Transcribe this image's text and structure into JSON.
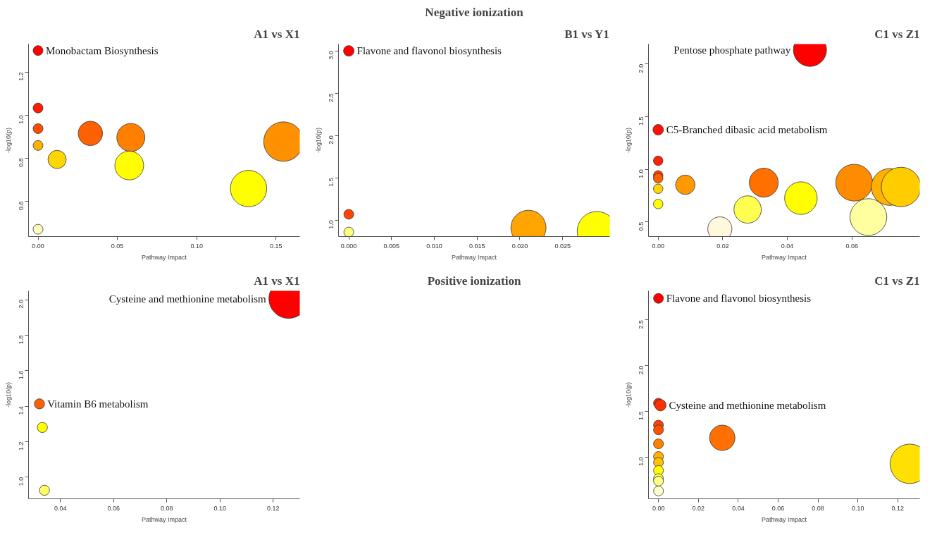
{
  "chart_data": [
    {
      "type": "bubble",
      "title": "A1 vs X1",
      "xlabel": "Pathway Impact",
      "ylabel": "-log10(p)",
      "marker": "circle",
      "x": [
        0,
        0,
        0,
        0,
        0.012,
        0.033,
        0.0585,
        0.0575,
        0.1547,
        0.1327,
        0
      ],
      "values": [
        1.3,
        1.033,
        0.937,
        0.859,
        0.794,
        0.915,
        0.896,
        0.766,
        0.877,
        0.659,
        0.47
      ],
      "sizes": [
        0.0625,
        0.0625,
        0.0625,
        0.0625,
        0.213,
        0.379,
        0.506,
        0.534,
        1,
        0.852,
        0.0625
      ],
      "colors": [
        "#ff0000",
        "#ff1a00",
        "#ff4d00",
        "#ffb300",
        "#ffd700",
        "#ff6000",
        "#ff8000",
        "#ffff00",
        "#ff9000",
        "#ffff00",
        "#ffffc0"
      ],
      "xlim": [
        -0.006,
        0.165
      ],
      "ylim": [
        0.436,
        1.33
      ],
      "xticks": [
        {
          "value": 0,
          "label": "0.00"
        },
        0.05,
        {
          "value": 0.1,
          "label": "0.10"
        },
        0.15
      ],
      "yticks": [
        0.6,
        0.8,
        {
          "value": 1,
          "label": "1.0"
        },
        1.2
      ],
      "annotations": [
        {
          "text": "Monobactam Biosynthesis",
          "x": 0,
          "y": 1.3
        }
      ]
    },
    {
      "type": "bubble",
      "title": "Negative ionization",
      "subtitle": "B1 vs Y1",
      "xlabel": "Pathway Impact",
      "ylabel": "-log10(p)",
      "marker": "circle",
      "x": [
        0,
        0,
        0,
        0.021,
        0.029
      ],
      "values": [
        3.0,
        1.07,
        0.86,
        0.91,
        0.87
      ],
      "sizes": [
        0.071,
        0.0625,
        0.0625,
        0.795,
        1
      ],
      "colors": [
        "#ff0000",
        "#ff4500",
        "#ffff80",
        "#ffa500",
        "#ffff00"
      ],
      "xlim": [
        -0.0012,
        0.0305
      ],
      "ylim": [
        0.807,
        3.08
      ],
      "xticks": [
        {
          "value": 0,
          "label": "0.000"
        },
        0.005,
        {
          "value": 0.01,
          "label": "0.010"
        },
        0.015,
        {
          "value": 0.02,
          "label": "0.020"
        },
        0.025
      ],
      "yticks": [
        {
          "value": 1,
          "label": "1.0"
        },
        1.5,
        {
          "value": 2,
          "label": "2.0"
        },
        2.5,
        {
          "value": 3,
          "label": "3.0"
        }
      ],
      "annotations": [
        {
          "text": "Flavone and flavonol biosynthesis",
          "x": 0,
          "y": 3.0
        }
      ]
    },
    {
      "type": "bubble",
      "title": "C1 vs Z1",
      "xlabel": "Pathway Impact",
      "ylabel": "-log10(p)",
      "marker": "circle",
      "x": [
        0.047,
        0,
        0,
        0,
        0,
        0,
        0,
        0.0084,
        0.0327,
        0.0277,
        0.0191,
        0.0442,
        0.0607,
        0.0651,
        0.0717,
        0.0752
      ],
      "values": [
        2.135,
        1.376,
        1.081,
        0.942,
        0.915,
        0.815,
        0.67,
        0.853,
        0.873,
        0.618,
        0.433,
        0.726,
        0.873,
        0.546,
        0.832,
        0.832
      ],
      "sizes": [
        0.706,
        0.071,
        0.058,
        0.058,
        0.058,
        0.058,
        0.058,
        0.243,
        0.538,
        0.481,
        0.376,
        0.683,
        0.871,
        0.871,
        0.871,
        1
      ],
      "colors": [
        "#ff0000",
        "#ff1000",
        "#ff2000",
        "#ff4000",
        "#ff6000",
        "#ffd700",
        "#ffff00",
        "#ff9900",
        "#ff7000",
        "#ffff50",
        "#fff8dc",
        "#ffff00",
        "#ff8c00",
        "#ffffa0",
        "#ffb000",
        "#ffcc00"
      ],
      "xlim": [
        -0.003,
        0.081
      ],
      "ylim": [
        0.361,
        2.19
      ],
      "xticks": [
        {
          "value": 0,
          "label": "0.00"
        },
        0.02,
        0.04,
        0.06
      ],
      "yticks": [
        0.5,
        {
          "value": 1,
          "label": "1.0"
        },
        1.5,
        {
          "value": 2,
          "label": "2.0"
        }
      ],
      "annotations": [
        {
          "text": "Pentose phosphate pathway",
          "x": 0.047,
          "y": 2.135
        },
        {
          "text": "C5-Branched dibasic acid metabolism",
          "x": 0,
          "y": 1.376
        }
      ]
    },
    {
      "type": "bubble",
      "title": "A1 vs X1",
      "xlabel": "Pathway Impact",
      "ylabel": "-log10(p)",
      "marker": "circle",
      "x": [
        0.1258,
        0.0321,
        0.0332,
        0.034
      ],
      "values": [
        2.006,
        1.413,
        1.28,
        0.926
      ],
      "sizes": [
        1,
        0.066,
        0.066,
        0.066
      ],
      "colors": [
        "#ff0000",
        "#ff6000",
        "#ffff00",
        "#ffff60"
      ],
      "xlim": [
        0.028,
        0.13
      ],
      "ylim": [
        0.878,
        2.05
      ],
      "xticks": [
        0.04,
        0.06,
        0.08,
        {
          "value": 0.1,
          "label": "0.10"
        },
        0.12
      ],
      "yticks": [
        {
          "value": 1,
          "label": "1.0"
        },
        1.2,
        1.4,
        1.6,
        1.8,
        {
          "value": 2,
          "label": "2.0"
        }
      ],
      "annotations": [
        {
          "text": "Cysteine and methionine metabolism",
          "x": 0.1258,
          "y": 2.006
        },
        {
          "text": "Vitamin B6 metabolism",
          "x": 0.0321,
          "y": 1.413
        }
      ]
    },
    {
      "type": "other",
      "title": "Positive ionization"
    },
    {
      "type": "bubble",
      "title": "C1 vs Z1",
      "xlabel": "Pathway Impact",
      "ylabel": "-log10(p)",
      "marker": "circle",
      "x": [
        0,
        0,
        0.001,
        0,
        0,
        0,
        0,
        0,
        0,
        0,
        0,
        0,
        0.032,
        0.126
      ],
      "values": [
        2.737,
        1.589,
        1.567,
        1.349,
        1.297,
        1.144,
        1.005,
        0.941,
        0.852,
        0.763,
        0.736,
        0.628,
        1.21,
        0.925
      ],
      "sizes": [
        0.0625,
        0.0625,
        0.082,
        0.0625,
        0.0625,
        0.0625,
        0.0625,
        0.0625,
        0.0625,
        0.0625,
        0.0625,
        0.0625,
        0.413,
        1
      ],
      "colors": [
        "#ff0000",
        "#ff2000",
        "#ff3000",
        "#ff4000",
        "#ff5000",
        "#ff8000",
        "#ffb000",
        "#ffc000",
        "#ffff00",
        "#ffff60",
        "#ffff80",
        "#ffffd0",
        "#ff7000",
        "#ffe000"
      ],
      "xlim": [
        -0.005,
        0.131
      ],
      "ylim": [
        0.542,
        2.82
      ],
      "xticks": [
        {
          "value": 0,
          "label": "0.00"
        },
        0.02,
        0.04,
        0.06,
        0.08,
        {
          "value": 0.1,
          "label": "0.10"
        },
        0.12
      ],
      "yticks": [
        {
          "value": 1,
          "label": "1.0"
        },
        1.5,
        {
          "value": 2,
          "label": "2.0"
        },
        2.5
      ],
      "annotations": [
        {
          "text": "Flavone and flavonol biosynthesis",
          "x": 0,
          "y": 2.737
        },
        {
          "text": "Cysteine and methionine metabolism",
          "x": 0.001,
          "y": 1.567
        }
      ]
    }
  ]
}
